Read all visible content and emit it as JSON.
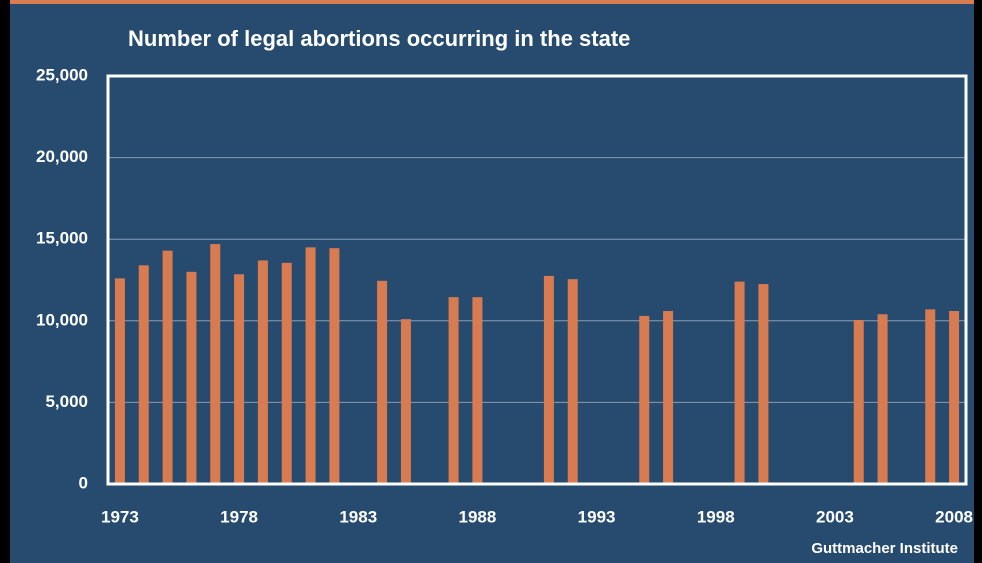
{
  "chart_data": {
    "type": "bar",
    "title": "Number of legal abortions occurring in the state",
    "source": "Guttmacher Institute",
    "categories": [
      "1973",
      null,
      null,
      null,
      null,
      "1978",
      null,
      null,
      null,
      null,
      "1983",
      null,
      null,
      null,
      null,
      "1988",
      null,
      null,
      null,
      null,
      "1993",
      null,
      null,
      null,
      null,
      "1998",
      null,
      null,
      null,
      null,
      "2003",
      null,
      null,
      null,
      null,
      "2008"
    ],
    "values": [
      12600,
      13400,
      14300,
      13000,
      14700,
      12850,
      13700,
      13550,
      14500,
      14450,
      null,
      12450,
      10100,
      null,
      11450,
      11450,
      null,
      null,
      12750,
      12550,
      null,
      null,
      10300,
      10600,
      null,
      null,
      12400,
      12250,
      null,
      null,
      null,
      10050,
      10400,
      null,
      10700,
      10600
    ],
    "color": "#d97b50",
    "ylim": [
      0,
      25000
    ],
    "yticks": [
      0,
      {
        "value": 5000,
        "label": "5,000"
      },
      {
        "value": 10000,
        "label": "10,000"
      },
      {
        "value": 15000,
        "label": "15,000"
      },
      {
        "value": 20000,
        "label": "20,000"
      },
      {
        "value": 25000,
        "label": "25,000"
      }
    ],
    "grid": true
  }
}
